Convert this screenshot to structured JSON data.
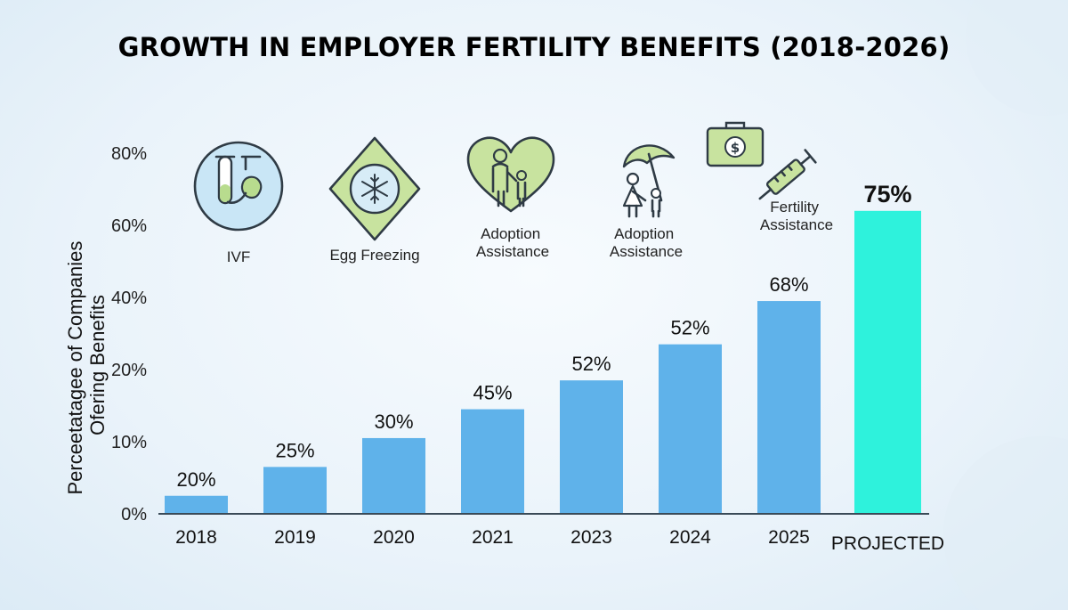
{
  "chart_data": {
    "type": "bar",
    "title": "GROWTH IN EMPLOYER FERTILITY BENEFITS (2018-2026)",
    "ylabel_lines": [
      "Perceetatagee of  Companies",
      "Ofering Benefits"
    ],
    "xlabel": "",
    "y_ticks": [
      "0%",
      "10%",
      "20%",
      "40%",
      "60%",
      "80%"
    ],
    "categories": [
      "2018",
      "2019",
      "2020",
      "2021",
      "2023",
      "2024",
      "2025",
      "PROJECTED"
    ],
    "values": [
      20,
      25,
      30,
      45,
      52,
      52,
      68,
      75
    ],
    "value_labels": [
      "20%",
      "25%",
      "30%",
      "45%",
      "52%",
      "52%",
      "68%",
      "75%"
    ],
    "bar_levels": [
      0.05,
      0.13,
      0.21,
      0.29,
      0.37,
      0.47,
      0.59,
      0.84
    ],
    "highlight_index": 7,
    "colors": {
      "bar": "#5fb2ea",
      "highlight": "#2ef2dc",
      "axis": "#3a4a57"
    },
    "legend": "none",
    "grid": false
  },
  "icons": [
    {
      "name": "ivf-icon",
      "label_lines": [
        "IVF"
      ]
    },
    {
      "name": "egg-freezing-icon",
      "label_lines": [
        "Egg Freezing"
      ]
    },
    {
      "name": "adoption-heart-icon",
      "label_lines": [
        "Adoption",
        "Assistance"
      ]
    },
    {
      "name": "adoption-umbrella-icon",
      "label_lines": [
        "Adoption",
        "Assistance"
      ]
    },
    {
      "name": "money-briefcase-icon",
      "label_lines": []
    },
    {
      "name": "syringe-icon",
      "label_lines": [
        "Fertility",
        "Assistance"
      ]
    }
  ]
}
